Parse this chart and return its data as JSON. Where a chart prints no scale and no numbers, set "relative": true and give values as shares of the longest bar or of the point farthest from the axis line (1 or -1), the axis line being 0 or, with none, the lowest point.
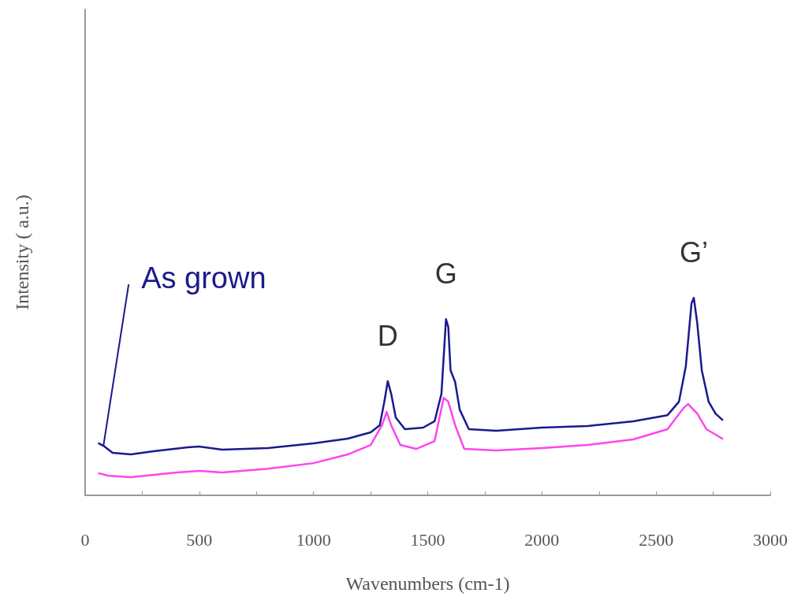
{
  "chart_data": {
    "type": "line",
    "xlabel": "Wavenumbers (cm-1)",
    "ylabel": "Intensity ( a.u.)",
    "relative": true,
    "xlim": [
      0,
      3000
    ],
    "xticks": [
      0,
      {
        "value": 250,
        "label": null
      },
      500,
      {
        "value": 750,
        "label": null
      },
      1000,
      {
        "value": 1250,
        "label": null
      },
      1500,
      {
        "value": 1750,
        "label": null
      },
      2000,
      {
        "value": 2250,
        "label": null
      },
      2500,
      {
        "value": 2750,
        "label": null
      },
      3000
    ],
    "grid": false,
    "legend": false,
    "marker": "none",
    "series": [
      {
        "name": "As grown",
        "color": "#1a1a8c",
        "x": [
          60,
          80,
          120,
          200,
          300,
          450,
          500,
          600,
          800,
          1000,
          1150,
          1250,
          1290,
          1310,
          1325,
          1340,
          1360,
          1400,
          1480,
          1530,
          1560,
          1580,
          1590,
          1600,
          1620,
          1640,
          1680,
          1800,
          2000,
          2200,
          2400,
          2550,
          2600,
          2630,
          2655,
          2665,
          2680,
          2700,
          2730,
          2760,
          2790
        ],
        "values": [
          0.263,
          0.251,
          0.215,
          0.207,
          0.223,
          0.243,
          0.247,
          0.231,
          0.239,
          0.263,
          0.287,
          0.319,
          0.355,
          0.474,
          0.578,
          0.514,
          0.394,
          0.335,
          0.343,
          0.375,
          0.514,
          0.892,
          0.853,
          0.633,
          0.574,
          0.434,
          0.335,
          0.327,
          0.343,
          0.351,
          0.375,
          0.406,
          0.474,
          0.653,
          0.972,
          1,
          0.873,
          0.633,
          0.474,
          0.414,
          0.382
        ]
      },
      {
        "color": "#ff44ee",
        "x": [
          60,
          100,
          200,
          400,
          500,
          600,
          800,
          1000,
          1150,
          1250,
          1300,
          1320,
          1340,
          1380,
          1450,
          1530,
          1570,
          1590,
          1620,
          1660,
          1800,
          2000,
          2200,
          2400,
          2550,
          2620,
          2640,
          2680,
          2720,
          2790
        ],
        "values": [
          0.112,
          0.1,
          0.092,
          0.116,
          0.124,
          0.116,
          0.135,
          0.163,
          0.207,
          0.255,
          0.355,
          0.422,
          0.355,
          0.255,
          0.235,
          0.275,
          0.494,
          0.474,
          0.355,
          0.235,
          0.227,
          0.239,
          0.255,
          0.283,
          0.335,
          0.442,
          0.462,
          0.414,
          0.335,
          0.287
        ]
      }
    ],
    "annotations": [
      {
        "text": "D",
        "x": 1325,
        "y": 0.578
      },
      {
        "text": "G",
        "x": 1580,
        "y": 0.892
      },
      {
        "text": "G’",
        "x": 2665,
        "y": 1
      }
    ]
  }
}
